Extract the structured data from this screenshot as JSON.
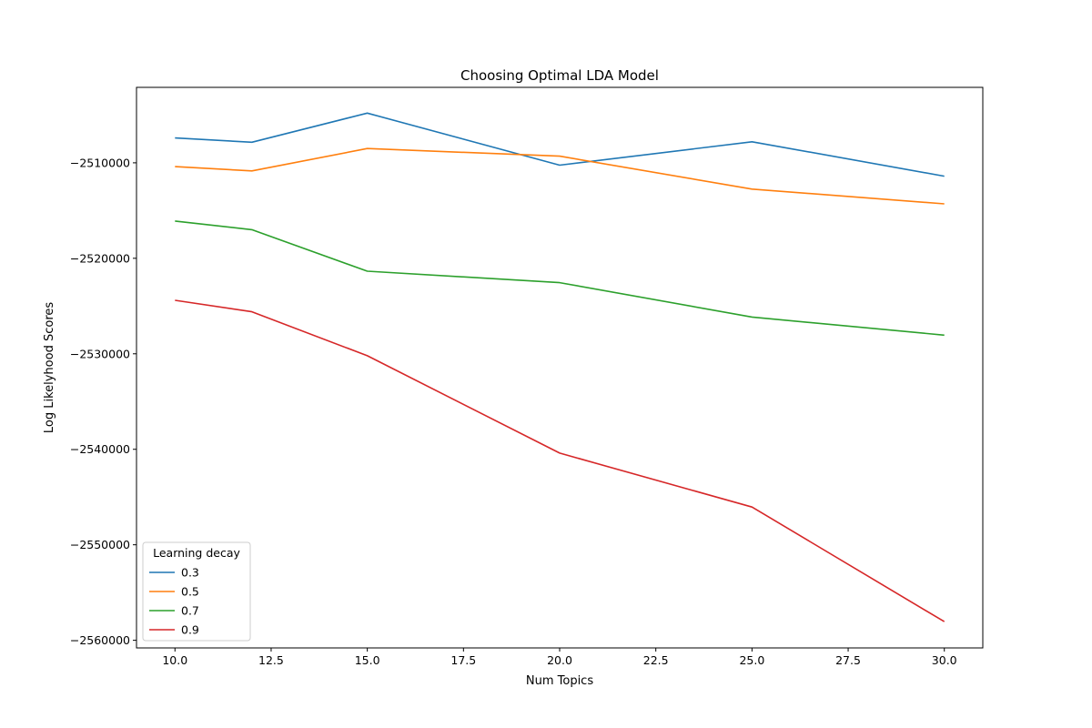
{
  "chart_data": {
    "type": "line",
    "title": "Choosing Optimal LDA Model",
    "xlabel": "Num Topics",
    "ylabel": "Log Likelyhood Scores",
    "x": [
      10,
      12,
      15,
      20,
      25,
      30
    ],
    "xlim": [
      9.0,
      31.0
    ],
    "ylim": [
      -2560800,
      -2502100
    ],
    "xticks": [
      10.0,
      12.5,
      15.0,
      17.5,
      20.0,
      22.5,
      25.0,
      27.5,
      30.0
    ],
    "xtick_labels": [
      "10.0",
      "12.5",
      "15.0",
      "17.5",
      "20.0",
      "22.5",
      "25.0",
      "27.5",
      "30.0"
    ],
    "yticks": [
      -2510000,
      -2520000,
      -2530000,
      -2540000,
      -2550000,
      -2560000
    ],
    "ytick_labels": [
      "−2510000",
      "−2520000",
      "−2530000",
      "−2540000",
      "−2550000",
      "−2560000"
    ],
    "grid": false,
    "legend_title": "Learning decay",
    "legend_position": "lower-left",
    "series": [
      {
        "name": "0.3",
        "color": "#1f77b4",
        "values": [
          -2507400,
          -2507850,
          -2504800,
          -2510250,
          -2507800,
          -2511400
        ]
      },
      {
        "name": "0.5",
        "color": "#ff7f0e",
        "values": [
          -2510400,
          -2510850,
          -2508500,
          -2509300,
          -2512750,
          -2514300
        ]
      },
      {
        "name": "0.7",
        "color": "#2ca02c",
        "values": [
          -2516100,
          -2517000,
          -2521350,
          -2522550,
          -2526150,
          -2528050
        ]
      },
      {
        "name": "0.9",
        "color": "#d62728",
        "values": [
          -2524400,
          -2525600,
          -2530200,
          -2540400,
          -2546050,
          -2558050
        ]
      }
    ]
  }
}
